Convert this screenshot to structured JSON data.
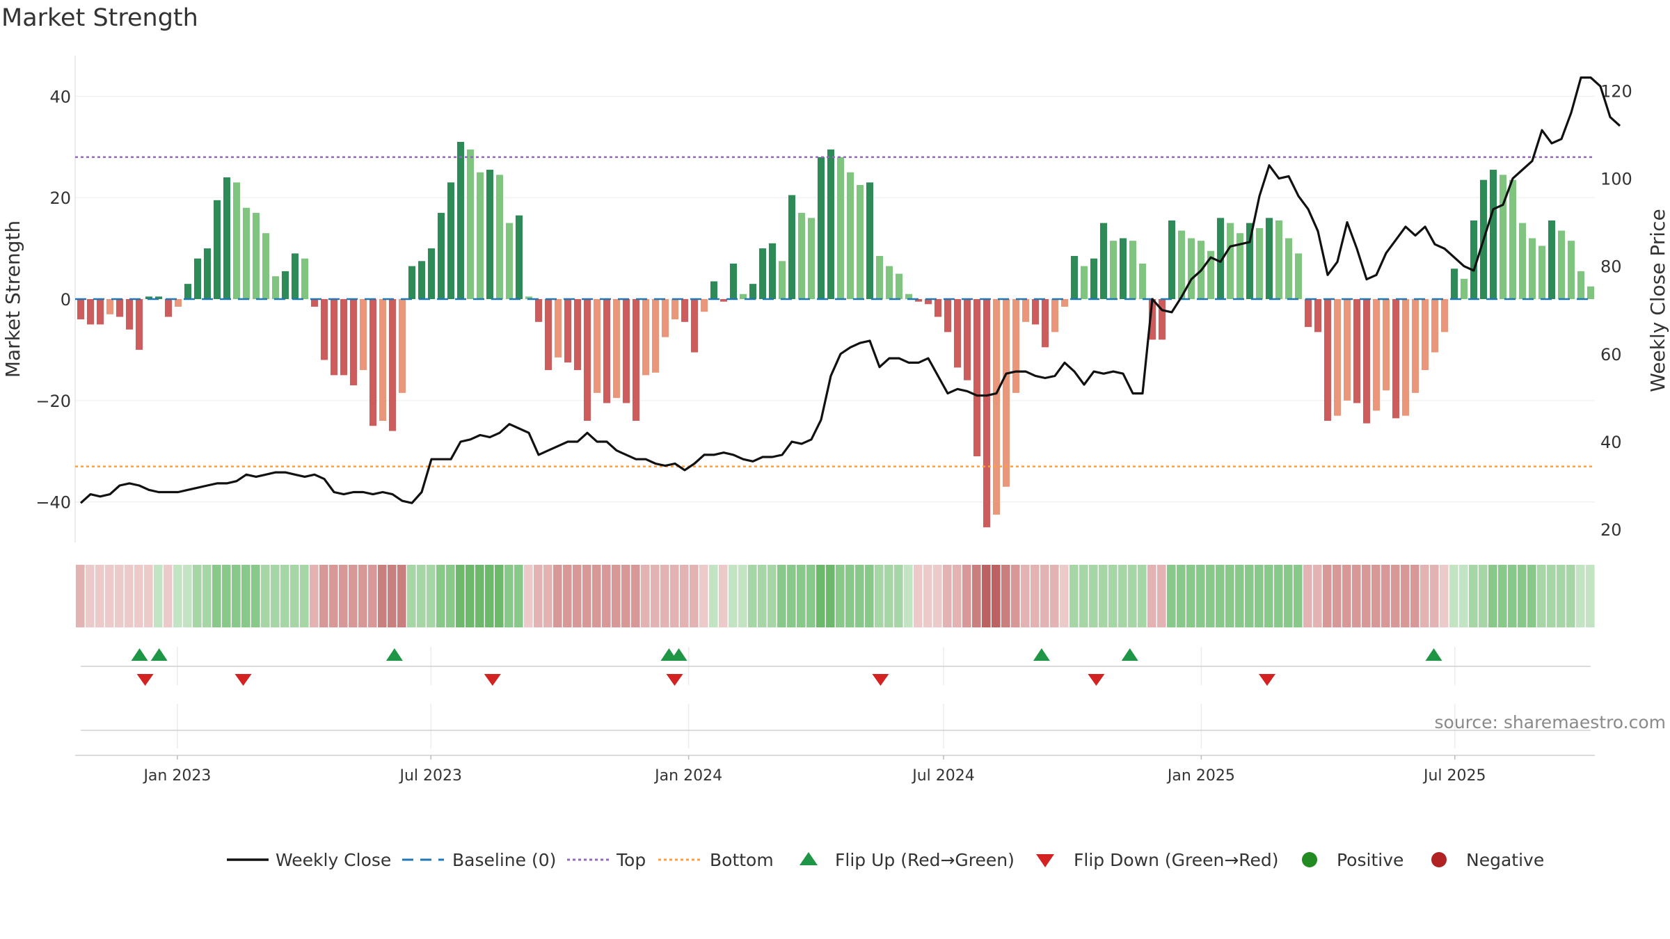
{
  "chart_data": {
    "type": "bar",
    "title": "Market Strength",
    "source": "source: sharemaestro.com",
    "ylabel_left": "Market Strength",
    "ylabel_right": "Weekly Close Price",
    "y_left": {
      "min": -48,
      "max": 48,
      "ticks": [
        40,
        20,
        0,
        -20,
        -40
      ],
      "tick_labels": [
        "40",
        "20",
        "0",
        "−20",
        "−40"
      ]
    },
    "y_right": {
      "min": 17,
      "max": 128,
      "ticks": [
        120,
        100,
        80,
        60,
        40,
        20
      ],
      "tick_labels": [
        "120",
        "100",
        "80",
        "60",
        "40",
        "20"
      ]
    },
    "x_axis": {
      "ticks": [
        {
          "date": "2023-01-01",
          "label": "Jan 2023"
        },
        {
          "date": "2023-07-01",
          "label": "Jul 2023"
        },
        {
          "date": "2024-01-01",
          "label": "Jan 2024"
        },
        {
          "date": "2024-07-01",
          "label": "Jul 2024"
        },
        {
          "date": "2025-01-01",
          "label": "Jan 2025"
        },
        {
          "date": "2025-07-01",
          "label": "Jul 2025"
        }
      ],
      "first_week": "2022-10-24",
      "last_week": "2025-10-06",
      "frequency": "weekly"
    },
    "top_line": 28,
    "bottom_line": -33,
    "strength": [
      -4,
      -5,
      -5,
      -3,
      -3.5,
      -6,
      -10,
      0.5,
      0.5,
      -3.5,
      -1.5,
      3,
      8,
      10,
      19.5,
      24,
      23,
      18,
      17,
      13,
      4.5,
      5.5,
      9,
      8,
      -1.5,
      -12,
      -15,
      -15,
      -17,
      -14,
      -25,
      -24,
      -26,
      -18.5,
      6.5,
      7.5,
      10,
      17,
      23,
      31,
      29.5,
      25,
      25.5,
      24.5,
      15,
      16.5,
      0.5,
      -4.5,
      -14,
      -11.5,
      -12.5,
      -14,
      -24,
      -18.5,
      -20.5,
      -19.5,
      -20.5,
      -24,
      -15,
      -14.5,
      -7.5,
      -4,
      -4.5,
      -10.5,
      -2.5,
      3.5,
      -0.5,
      7,
      1,
      3,
      10,
      11,
      7.5,
      20.5,
      17,
      16,
      28,
      29.5,
      28,
      25,
      22.5,
      23,
      8.5,
      6.5,
      5,
      1,
      -0.5,
      -1,
      -3.5,
      -6.5,
      -13.5,
      -16,
      -31,
      -45,
      -42.5,
      -37,
      -18.5,
      -4.5,
      -5,
      -9.5,
      -6.5,
      -1.5,
      8.5,
      6.5,
      8,
      15,
      11.5,
      12,
      11.5,
      7,
      -8,
      -8,
      15.5,
      13.5,
      12,
      11.5,
      9.5,
      16,
      15,
      13,
      15,
      14,
      16,
      15.5,
      12,
      9,
      -5.5,
      -6.5,
      -24,
      -23,
      -20,
      -20.5,
      -24.5,
      -22,
      -18,
      -23.5,
      -23,
      -18.5,
      -14,
      -10.5,
      -6.5,
      6,
      4,
      15.5,
      23.5,
      25.5,
      24.5,
      23.5,
      15,
      12,
      10.5,
      15.5,
      13.5,
      11.5,
      5.5,
      2.5
    ],
    "weekly_close": [
      26,
      28,
      27.5,
      28,
      30,
      30.5,
      30,
      29,
      28.5,
      28.5,
      28.5,
      29,
      29.5,
      30,
      30.5,
      30.5,
      31,
      32.5,
      32,
      32.5,
      33,
      33,
      32.5,
      32,
      32.5,
      31.5,
      28.5,
      28,
      28.5,
      28.5,
      28,
      28.5,
      28,
      26.5,
      26,
      28.5,
      36,
      36,
      36,
      40,
      40.5,
      41.5,
      41,
      42,
      44,
      43,
      42,
      37,
      38,
      39,
      40,
      40,
      42,
      40,
      40,
      38,
      37,
      36,
      36,
      35,
      34.5,
      35,
      33.5,
      35,
      37,
      37,
      37.5,
      37,
      36,
      35.5,
      36.5,
      36.5,
      37,
      40,
      39.5,
      40.5,
      45,
      55,
      60,
      61.5,
      62.5,
      63,
      57,
      59,
      59,
      58,
      58,
      59,
      55,
      51,
      52,
      51.5,
      50.5,
      50.5,
      51,
      55.5,
      56,
      56,
      55,
      54.5,
      55,
      58,
      56,
      53,
      56,
      55.5,
      56,
      55.5,
      51,
      51,
      72.5,
      70,
      69.5,
      73,
      77,
      79,
      82,
      81,
      84.5,
      85,
      85.5,
      96,
      103,
      100,
      100.5,
      96,
      93,
      88,
      78,
      81,
      90,
      84,
      77,
      78,
      83,
      86,
      89,
      87,
      89,
      85,
      84,
      82,
      80,
      79,
      86,
      93,
      94,
      100,
      102,
      104,
      111,
      108,
      109,
      115,
      123,
      123,
      121,
      114,
      112
    ],
    "state_bands": [
      -2,
      -1,
      -1,
      -1,
      -1,
      -1,
      -1,
      -1,
      1,
      -1,
      1,
      1,
      2,
      2,
      3,
      3,
      3,
      3,
      3,
      2,
      2,
      2,
      2,
      2,
      -2,
      -3,
      -3,
      -3,
      -3,
      -3,
      -3,
      -4,
      -4,
      -4,
      2,
      2,
      2,
      3,
      3,
      4,
      4,
      4,
      4,
      4,
      3,
      3,
      -1,
      -2,
      -2,
      -3,
      -3,
      -3,
      -3,
      -3,
      -3,
      -3,
      -3,
      -3,
      -2,
      -2,
      -2,
      -2,
      -2,
      -2,
      -1,
      1,
      -1,
      1,
      1,
      2,
      2,
      2,
      3,
      3,
      3,
      3,
      4,
      4,
      3,
      3,
      3,
      3,
      2,
      2,
      2,
      1,
      -1,
      -1,
      -1,
      -2,
      -2,
      -3,
      -4,
      -5,
      -5,
      -4,
      -3,
      -2,
      -2,
      -2,
      -2,
      -1,
      2,
      2,
      2,
      2,
      2,
      2,
      2,
      2,
      -2,
      -2,
      3,
      3,
      3,
      3,
      3,
      3,
      3,
      3,
      3,
      3,
      3,
      3,
      3,
      3,
      -2,
      -2,
      -3,
      -3,
      -3,
      -3,
      -3,
      -3,
      -3,
      -3,
      -3,
      -3,
      -2,
      -2,
      -1,
      1,
      1,
      2,
      2,
      3,
      3,
      3,
      3,
      3,
      2,
      2,
      2,
      2,
      1,
      1
    ],
    "flips": {
      "up": [
        "2022-12-05",
        "2022-12-19",
        "2023-06-05",
        "2023-12-18",
        "2023-12-25",
        "2024-09-09",
        "2024-11-11",
        "2025-06-16"
      ],
      "down": [
        "2022-12-09",
        "2023-02-17",
        "2023-08-14",
        "2023-12-22",
        "2024-05-17",
        "2024-10-18",
        "2025-02-17"
      ]
    },
    "colors": {
      "pos_strong": "#2e8b57",
      "pos_light": "#7fc47f",
      "neg_strong": "#cd5c5c",
      "neg_light": "#e9967a",
      "close_line": "#111111",
      "baseline": "#1f77b4",
      "top": "#9467bd",
      "bottom": "#ff9f40",
      "flip_up": "#1e9646",
      "flip_down": "#d32222",
      "positive": "#228b22",
      "negative": "#b22222"
    },
    "legend": {
      "placement": "bottom-center",
      "items": [
        {
          "label": "Weekly Close",
          "kind": "line-solid",
          "color": "#111111"
        },
        {
          "label": "Baseline (0)",
          "kind": "line-dashed",
          "color": "#1f77b4"
        },
        {
          "label": "Top",
          "kind": "line-dotted",
          "color": "#9467bd"
        },
        {
          "label": "Bottom",
          "kind": "line-dotted",
          "color": "#ff9f40"
        },
        {
          "label": "Flip Up (Red→Green)",
          "kind": "triangle-up",
          "color": "#1e9646"
        },
        {
          "label": "Flip Down (Green→Red)",
          "kind": "triangle-down",
          "color": "#d32222"
        },
        {
          "label": "Positive",
          "kind": "dot",
          "color": "#228b22"
        },
        {
          "label": "Negative",
          "kind": "dot",
          "color": "#b22222"
        }
      ]
    },
    "grid": true
  }
}
